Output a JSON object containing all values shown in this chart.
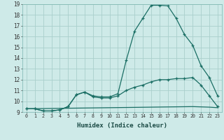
{
  "title": "",
  "xlabel": "Humidex (Indice chaleur)",
  "xlim": [
    -0.5,
    23.5
  ],
  "ylim": [
    9,
    19
  ],
  "bg_color": "#ceeae8",
  "grid_color": "#aacfcc",
  "line_color": "#1a6e64",
  "line1_x": [
    0,
    1,
    2,
    3,
    4,
    5,
    6,
    7,
    8,
    9,
    10,
    11,
    12,
    13,
    14,
    15,
    16,
    17,
    18,
    19,
    20,
    21,
    22,
    23
  ],
  "line1_y": [
    9.3,
    9.3,
    9.1,
    9.1,
    9.2,
    9.5,
    10.6,
    10.85,
    10.5,
    10.4,
    10.4,
    10.7,
    13.8,
    16.5,
    17.7,
    18.9,
    18.9,
    18.85,
    17.7,
    16.2,
    15.2,
    13.3,
    12.2,
    10.5
  ],
  "line2_x": [
    0,
    1,
    2,
    3,
    4,
    5,
    6,
    7,
    8,
    9,
    10,
    11,
    12,
    13,
    14,
    15,
    16,
    17,
    18,
    19,
    20,
    21,
    22,
    23
  ],
  "line2_y": [
    9.3,
    9.3,
    9.1,
    9.1,
    9.2,
    9.5,
    10.6,
    10.85,
    10.4,
    10.3,
    10.3,
    10.5,
    11.0,
    11.3,
    11.5,
    11.8,
    12.0,
    12.0,
    12.1,
    12.1,
    12.2,
    11.5,
    10.5,
    9.5
  ],
  "line3_x": [
    0,
    5,
    10,
    15,
    20,
    22,
    23
  ],
  "line3_y": [
    9.3,
    9.35,
    9.4,
    9.45,
    9.5,
    9.45,
    9.4
  ]
}
